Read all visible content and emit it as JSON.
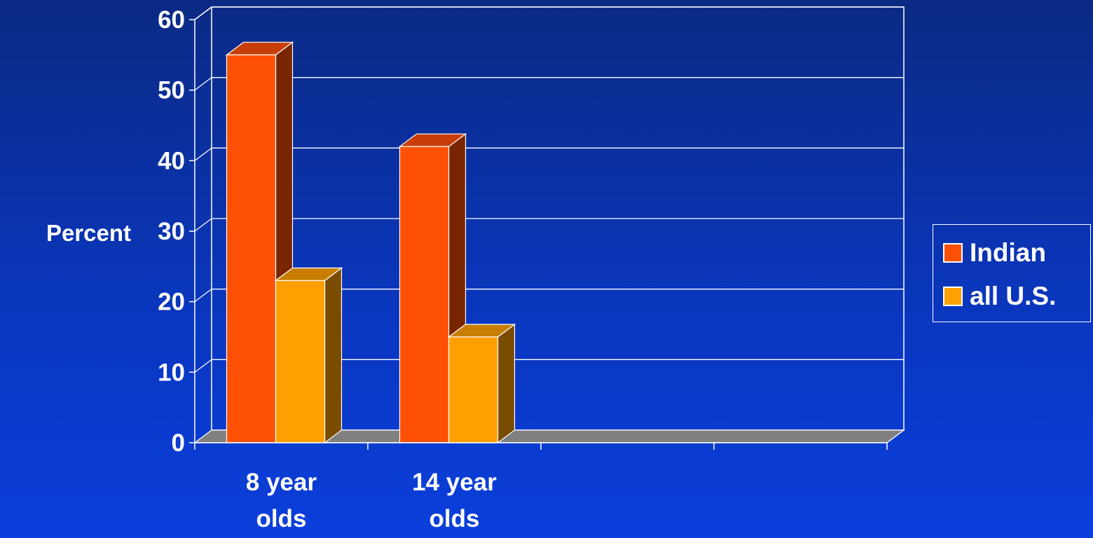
{
  "chart_data": {
    "type": "bar",
    "style": "3d-clustered-column",
    "title": "",
    "ylabel": "Percent",
    "xlabel": "",
    "ylim": [
      0,
      60
    ],
    "yticks": [
      0,
      10,
      20,
      30,
      40,
      50,
      60
    ],
    "grid": true,
    "legend_position": "right",
    "categories": [
      [
        "8 year",
        "olds"
      ],
      [
        "14 year",
        "olds"
      ],
      [
        "",
        ""
      ],
      [
        "",
        ""
      ]
    ],
    "series": [
      {
        "name": "Indian",
        "color": "#ff5106",
        "side_color": "#7a2502",
        "top_color": "#c83e08",
        "values": [
          55,
          42,
          null,
          null
        ]
      },
      {
        "name": "all U.S.",
        "color": "#ff9f00",
        "side_color": "#7a4c02",
        "top_color": "#c97e02",
        "values": [
          23,
          15,
          null,
          null
        ]
      }
    ],
    "colors": {
      "floor": "#808080",
      "gridline": "#ffffff",
      "text": "#ffffff"
    }
  }
}
